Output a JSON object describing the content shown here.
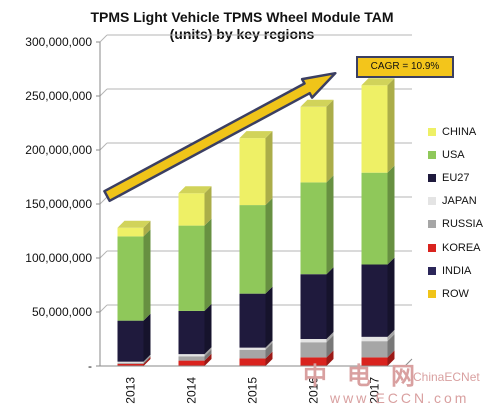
{
  "chart_data": {
    "type": "bar",
    "stacked": true,
    "title_line1": "TPMS Light Vehicle TPMS Wheel Module TAM",
    "title_line2": "(units) by key regions",
    "categories": [
      "2013",
      "2014",
      "2015",
      "2016",
      "2017"
    ],
    "ylim": [
      0,
      300000000
    ],
    "yticks": [
      "-",
      "50,000,000",
      "100,000,000",
      "150,000,000",
      "200,000,000",
      "250,000,000",
      "300,000,000"
    ],
    "grid": true,
    "legend_position": "right",
    "series": [
      {
        "name": "ROW",
        "color": "#f0c419",
        "values": [
          0,
          0,
          0,
          0,
          0
        ]
      },
      {
        "name": "INDIA",
        "color": "#2b2659",
        "values": [
          0,
          0,
          0,
          0,
          0
        ]
      },
      {
        "name": "KOREA",
        "color": "#d9231e",
        "values": [
          2000000,
          5000000,
          7000000,
          8000000,
          8000000
        ]
      },
      {
        "name": "RUSSIA",
        "color": "#a6a6a6",
        "values": [
          1000000,
          4000000,
          8000000,
          14000000,
          15000000
        ]
      },
      {
        "name": "JAPAN",
        "color": "#e4e4e4",
        "values": [
          1000000,
          2000000,
          2000000,
          3000000,
          4000000
        ]
      },
      {
        "name": "EU27",
        "color": "#1f1a3d",
        "values": [
          38000000,
          40000000,
          50000000,
          60000000,
          67000000
        ]
      },
      {
        "name": "USA",
        "color": "#8fc85a",
        "values": [
          78000000,
          79000000,
          82000000,
          85000000,
          85000000
        ]
      },
      {
        "name": "CHINA",
        "color": "#eef066",
        "values": [
          8000000,
          30000000,
          62000000,
          70000000,
          81000000
        ]
      }
    ],
    "legend_order": [
      "CHINA",
      "USA",
      "EU27",
      "JAPAN",
      "RUSSIA",
      "KOREA",
      "INDIA",
      "ROW"
    ],
    "annotation": "CAGR = 10.9%"
  },
  "colors": {
    "arrow_fill": "#f0c419",
    "arrow_outline": "#3b3f62"
  },
  "watermark": {
    "cn": "中电网",
    "brand": "ChinaECNet",
    "url": "www.ECCN.com"
  }
}
